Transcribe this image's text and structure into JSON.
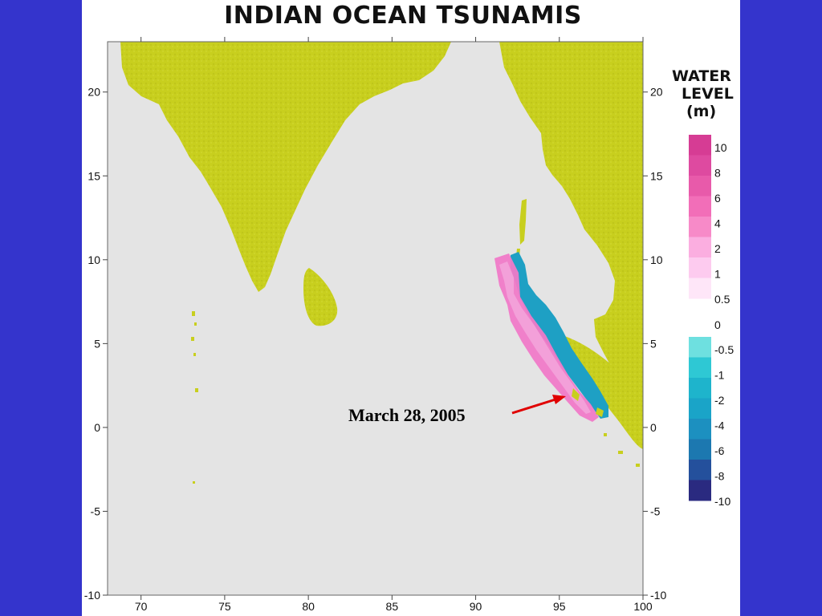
{
  "title": "INDIAN  OCEAN TSUNAMIS",
  "axes": {
    "x_ticks": [
      "70",
      "75",
      "80",
      "85",
      "90",
      "95",
      "100"
    ],
    "y_ticks": [
      "20",
      "15",
      "10",
      "5",
      "0",
      "-5",
      "-10"
    ],
    "x_range": [
      68,
      100
    ],
    "y_range": [
      -10,
      23
    ]
  },
  "legend": {
    "title_lines": [
      "WATER",
      "LEVEL",
      "(m)"
    ],
    "positive_labels": [
      "10",
      "8",
      "6",
      "4",
      "2",
      "1",
      "0.5"
    ],
    "zero_label": "0",
    "negative_labels": [
      "-0.5",
      "-1",
      "-2",
      "-4",
      "-6",
      "-8",
      "-10"
    ],
    "positive_colors": [
      "#d63c94",
      "#de4aa0",
      "#e85aaa",
      "#f26eb8",
      "#f78ac8",
      "#fbaee0",
      "#fdcbef",
      "#fee6f8"
    ],
    "negative_colors": [
      "#6ee0e0",
      "#2ec8d4",
      "#1eb4cc",
      "#1aa4c8",
      "#1c90c0",
      "#1c78b0",
      "#24509c",
      "#2a2a80"
    ]
  },
  "colors": {
    "background": "#3434cc",
    "ocean": "#e4e4e4",
    "land": "#c8cf1e",
    "wave_positive": "#f07ac8",
    "wave_negative": "#1ea0c4",
    "arrow": "#e00000"
  },
  "annotation": {
    "text": "March 28, 2005"
  }
}
